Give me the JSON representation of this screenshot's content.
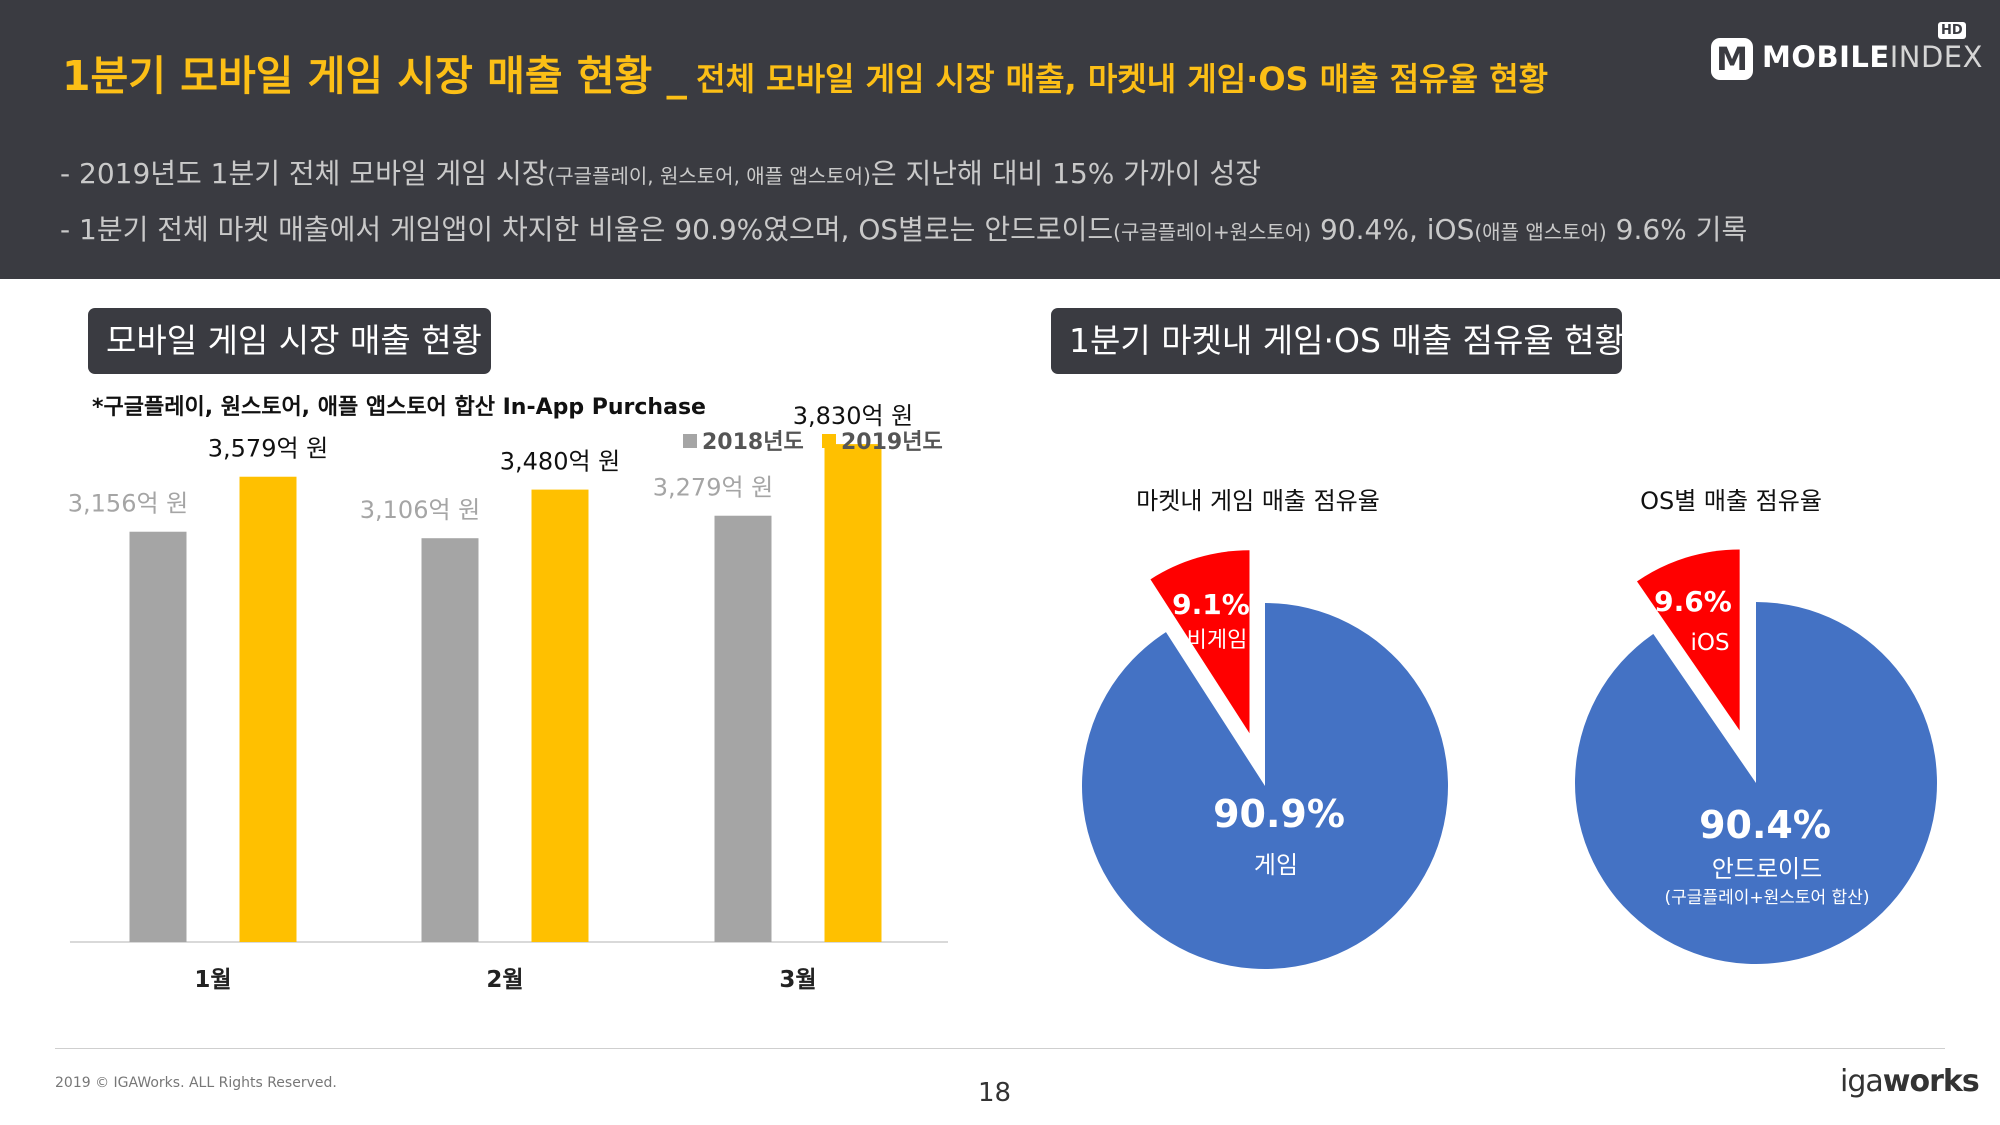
{
  "header": {
    "title_main": "1분기 모바일 게임 시장 매출 현황 _",
    "title_sub": "전체 모바일 게임 시장 매출, 마켓내 게임·OS 매출 점유율 현황",
    "bullet1_a": "- 2019년도 1분기 전체 모바일 게임 시장",
    "bullet1_b": "(구글플레이, 원스토어, 애플 앱스토어)",
    "bullet1_c": "은 지난해 대비 15% 가까이 성장",
    "bullet2_a": "- 1분기 전체 마켓 매출에서 게임앱이 차지한 비율은 90.9%였으며, OS별로는 안드로이드",
    "bullet2_b": "(구글플레이+원스토어)",
    "bullet2_c": " 90.4%, iOS",
    "bullet2_d": "(애플 앱스토어)",
    "bullet2_e": " 9.6% 기록"
  },
  "logo": {
    "m": "M",
    "text_bold": "MOBILE",
    "text_light": "INDEX",
    "hd": "HD"
  },
  "sections": {
    "left_label": "모바일 게임 시장 매출 현황",
    "right_label": "1분기 마켓내 게임·OS 매출 점유율 현황",
    "note": "*구글플레이, 원스토어, 애플 앱스토어 합산 In-App Purchase"
  },
  "colors": {
    "gray": "#a5a5a5",
    "yellow": "#ffc000",
    "blue": "#4472c4",
    "red": "#ff0000",
    "title": "#fcbf16",
    "dark": "#3a3b41"
  },
  "chart_data": [
    {
      "type": "bar",
      "categories": [
        "1월",
        "2월",
        "3월"
      ],
      "series": [
        {
          "name": "2018년도",
          "values": [
            3156,
            3106,
            3279
          ],
          "labels": [
            "3,156억 원",
            "3,106억 원",
            "3,279억 원"
          ]
        },
        {
          "name": "2019년도",
          "values": [
            3579,
            3480,
            3830
          ],
          "labels": [
            "3,579억 원",
            "3,480억 원",
            "3,830억 원"
          ]
        }
      ],
      "legend": "top-right",
      "grid": false
    },
    {
      "type": "pie",
      "title": "마켓내 게임 매출 점유율",
      "slices": [
        {
          "label": "게임",
          "value": 90.9,
          "text": "90.9%"
        },
        {
          "label": "비게임",
          "value": 9.1,
          "text": "9.1%"
        }
      ]
    },
    {
      "type": "pie",
      "title": "OS별 매출 점유율",
      "slices": [
        {
          "label": "안드로이드",
          "sublabel": "(구글플레이+원스토어 합산)",
          "value": 90.4,
          "text": "90.4%"
        },
        {
          "label": "iOS",
          "value": 9.6,
          "text": "9.6%"
        }
      ]
    }
  ],
  "footer": {
    "copyright": "2019 © IGAWorks. ALL Rights Reserved.",
    "page": "18",
    "brand_a": "iga",
    "brand_b": "works"
  }
}
